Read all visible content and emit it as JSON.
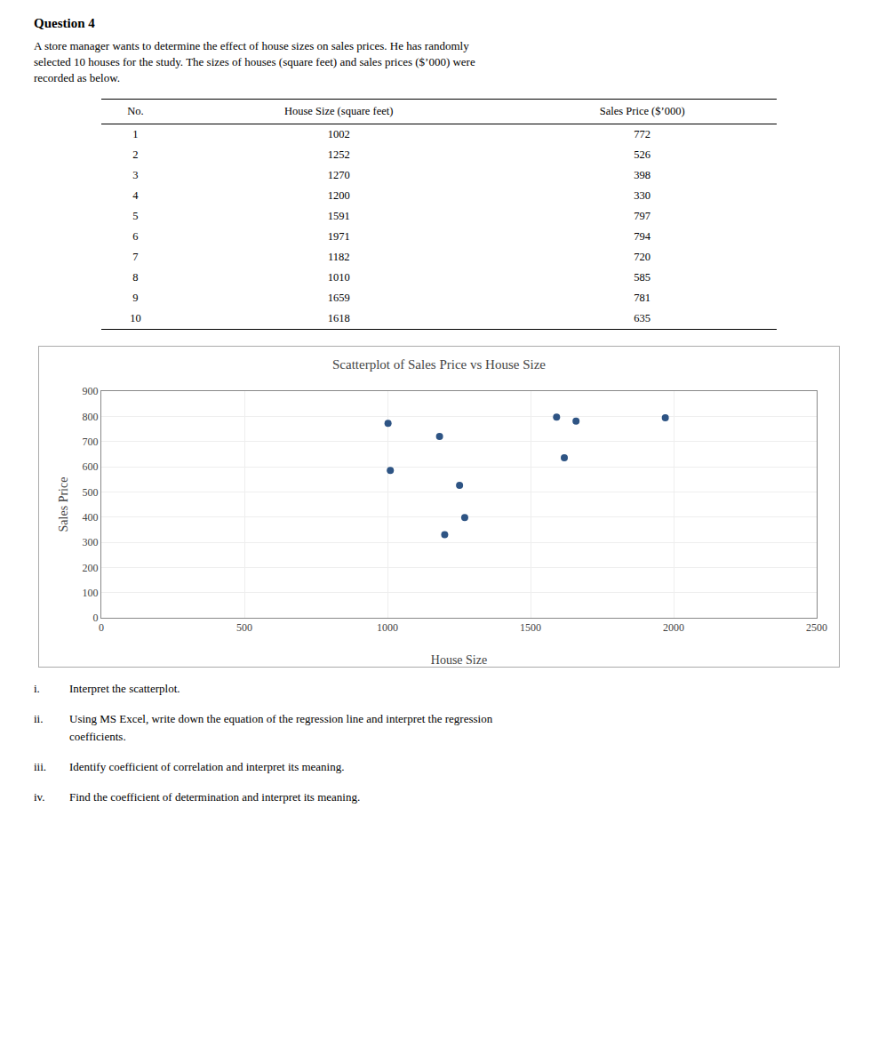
{
  "chart_data": {
    "type": "scatter",
    "title": "Scatterplot of Sales Price vs House Size",
    "xlabel": "House Size",
    "ylabel": "Sales Price",
    "x": [
      1002,
      1252,
      1270,
      1200,
      1591,
      1971,
      1182,
      1010,
      1659,
      1618
    ],
    "values": [
      772,
      526,
      398,
      330,
      797,
      794,
      720,
      585,
      781,
      635
    ],
    "color": "#2e5484",
    "marker": "circle",
    "xlim": [
      0,
      2500
    ],
    "ylim": [
      0,
      900
    ],
    "xticks": [
      0,
      500,
      1000,
      1500,
      2000,
      2500
    ],
    "yticks": [
      0,
      100,
      200,
      300,
      400,
      500,
      600,
      700,
      800,
      900
    ],
    "grid": true,
    "table": {
      "headers": [
        "No.",
        "House Size (square feet)",
        "Sales Price ($’000)"
      ],
      "row_numbers": [
        1,
        2,
        3,
        4,
        5,
        6,
        7,
        8,
        9,
        10
      ]
    },
    "annotations": {
      "heading": "Question 4",
      "intro": [
        "A store manager wants to determine the effect of house sizes on sales prices. He has randomly",
        "selected 10 houses for the study. The sizes of houses (square feet) and sales prices ($’000) were",
        "recorded as below."
      ],
      "questions": [
        {
          "label": "i.",
          "lines": [
            "Interpret the scatterplot."
          ]
        },
        {
          "label": "ii.",
          "lines": [
            "Using MS Excel, write down the equation of the regression line and interpret the regression",
            "coefficients."
          ]
        },
        {
          "label": "iii.",
          "lines": [
            "Identify coefficient of correlation and interpret its meaning."
          ]
        },
        {
          "label": "iv.",
          "lines": [
            "Find the coefficient of determination and interpret its meaning."
          ]
        }
      ]
    }
  }
}
